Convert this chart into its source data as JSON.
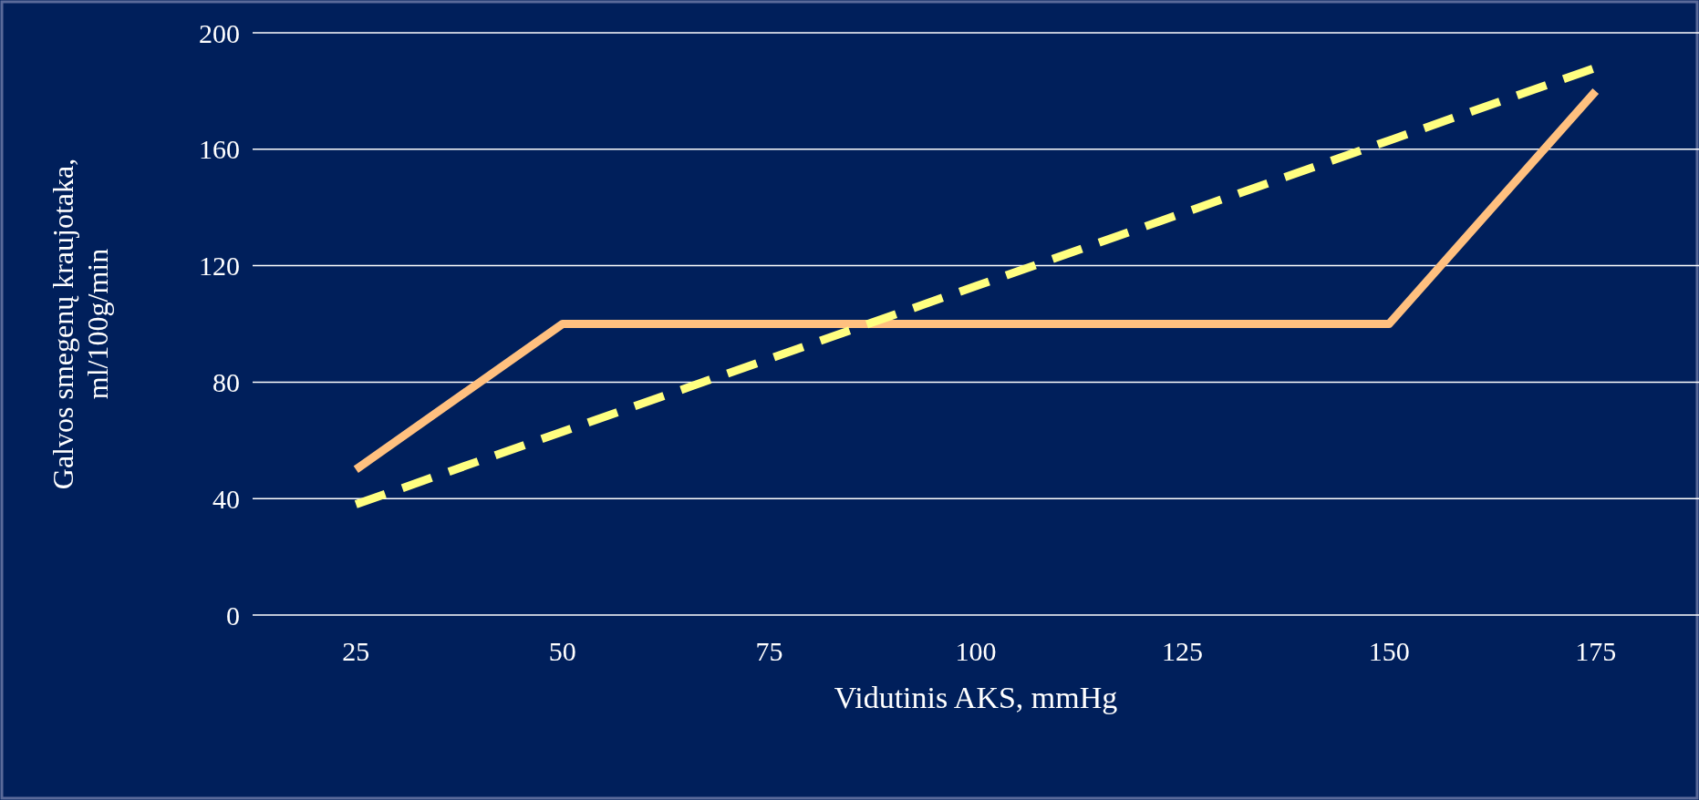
{
  "chart_data": {
    "type": "line",
    "xlabel": "Vidutinis AKS, mmHg",
    "ylabel": "Galvos smegenų kraujotaka, ml/100g/min",
    "categories": [
      "25",
      "50",
      "75",
      "100",
      "125",
      "150",
      "175"
    ],
    "ylim": [
      0,
      200
    ],
    "yticks": [
      0,
      40,
      80,
      120,
      160,
      200
    ],
    "grid": "y",
    "series": [
      {
        "color": "#ffc07f",
        "line_style": "solid",
        "values": [
          50,
          100,
          100,
          100,
          100,
          100,
          180
        ]
      },
      {
        "color": "#ffff80",
        "line_style": "dashed",
        "values": [
          38,
          63,
          88,
          113,
          138,
          163,
          188
        ]
      }
    ]
  }
}
